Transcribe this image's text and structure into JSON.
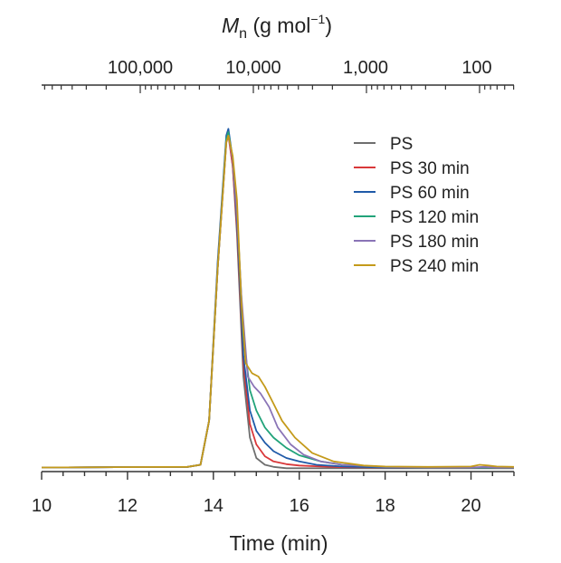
{
  "chart_data": {
    "type": "line",
    "xlabel": "Time (min)",
    "top_axis": {
      "label_italic": "M",
      "label_subscript": "n",
      "label_unit": "(g mol",
      "label_superscript": "−1",
      "label_close": ")",
      "tick_values": [
        100000,
        10000,
        1000,
        100
      ],
      "tick_labels": [
        "100,000",
        "10,000",
        "1,000",
        "100"
      ],
      "scale": "log"
    },
    "xlim": [
      10,
      21
    ],
    "xticks": [
      10,
      12,
      14,
      16,
      18,
      20
    ],
    "xtick_labels": [
      "10",
      "12",
      "14",
      "16",
      "18",
      "20"
    ],
    "ylim": [
      0,
      1.05
    ],
    "legend_position": "top-right",
    "series": [
      {
        "name": "PS",
        "color": "#6e6e6e",
        "x": [
          10,
          13.4,
          13.7,
          13.9,
          14.1,
          14.3,
          14.35,
          14.45,
          14.55,
          14.7,
          14.85,
          15.0,
          15.2,
          15.4,
          15.7,
          16.2,
          17,
          18,
          19,
          20,
          20.2,
          20.4,
          21
        ],
        "y": [
          0.012,
          0.014,
          0.02,
          0.15,
          0.6,
          0.98,
          1.0,
          0.9,
          0.7,
          0.28,
          0.1,
          0.04,
          0.02,
          0.014,
          0.01,
          0.01,
          0.01,
          0.01,
          0.01,
          0.01,
          0.01,
          0.01,
          0.01
        ]
      },
      {
        "name": "PS 30 min",
        "color": "#d9383a",
        "x": [
          10,
          13.4,
          13.7,
          13.9,
          14.1,
          14.3,
          14.35,
          14.45,
          14.55,
          14.7,
          14.85,
          15.0,
          15.2,
          15.4,
          15.7,
          16.0,
          16.5,
          17,
          18,
          19,
          20,
          20.3,
          20.6,
          21
        ],
        "y": [
          0.012,
          0.014,
          0.02,
          0.15,
          0.6,
          0.97,
          0.99,
          0.9,
          0.72,
          0.32,
          0.14,
          0.08,
          0.045,
          0.03,
          0.022,
          0.018,
          0.015,
          0.013,
          0.012,
          0.012,
          0.012,
          0.012,
          0.012,
          0.012
        ]
      },
      {
        "name": "PS 60 min",
        "color": "#1f5aa8",
        "x": [
          10,
          13.4,
          13.7,
          13.9,
          14.1,
          14.3,
          14.35,
          14.45,
          14.55,
          14.7,
          14.85,
          15.0,
          15.2,
          15.4,
          15.7,
          16.0,
          16.4,
          17,
          18,
          19,
          20,
          20.3,
          20.6,
          21
        ],
        "y": [
          0.012,
          0.014,
          0.02,
          0.15,
          0.62,
          0.99,
          1.01,
          0.92,
          0.74,
          0.34,
          0.18,
          0.12,
          0.085,
          0.06,
          0.04,
          0.03,
          0.02,
          0.015,
          0.012,
          0.012,
          0.012,
          0.012,
          0.012,
          0.012
        ]
      },
      {
        "name": "PS 120 min",
        "color": "#22a37a",
        "x": [
          10,
          13.4,
          13.7,
          13.9,
          14.1,
          14.3,
          14.35,
          14.45,
          14.55,
          14.7,
          14.85,
          15.0,
          15.2,
          15.4,
          15.7,
          16.0,
          16.5,
          17,
          18,
          19,
          20,
          20.3,
          20.6,
          21
        ],
        "y": [
          0.012,
          0.014,
          0.02,
          0.15,
          0.6,
          0.98,
          1.0,
          0.92,
          0.76,
          0.4,
          0.24,
          0.18,
          0.13,
          0.1,
          0.07,
          0.048,
          0.03,
          0.02,
          0.014,
          0.012,
          0.012,
          0.012,
          0.012,
          0.012
        ]
      },
      {
        "name": "PS 180 min",
        "color": "#8a74b6",
        "x": [
          10,
          13.4,
          13.7,
          13.9,
          14.1,
          14.3,
          14.35,
          14.45,
          14.55,
          14.65,
          14.8,
          14.95,
          15.1,
          15.3,
          15.5,
          15.8,
          16.1,
          16.5,
          17,
          18,
          19,
          20,
          20.3,
          20.6,
          21
        ],
        "y": [
          0.012,
          0.014,
          0.02,
          0.15,
          0.6,
          0.97,
          0.99,
          0.92,
          0.76,
          0.52,
          0.28,
          0.25,
          0.23,
          0.19,
          0.13,
          0.08,
          0.05,
          0.03,
          0.02,
          0.014,
          0.012,
          0.012,
          0.014,
          0.012,
          0.012
        ]
      },
      {
        "name": "PS 240 min",
        "color": "#c49a1a",
        "x": [
          10,
          13.4,
          13.7,
          13.9,
          14.1,
          14.3,
          14.35,
          14.45,
          14.55,
          14.65,
          14.75,
          14.9,
          15.05,
          15.2,
          15.4,
          15.6,
          15.9,
          16.3,
          16.8,
          17.5,
          18,
          19,
          20,
          20.2,
          20.4,
          20.6,
          21
        ],
        "y": [
          0.012,
          0.014,
          0.02,
          0.15,
          0.6,
          0.97,
          0.99,
          0.93,
          0.8,
          0.5,
          0.32,
          0.29,
          0.28,
          0.25,
          0.2,
          0.15,
          0.1,
          0.055,
          0.03,
          0.018,
          0.015,
          0.014,
          0.015,
          0.02,
          0.018,
          0.015,
          0.014
        ]
      }
    ]
  }
}
